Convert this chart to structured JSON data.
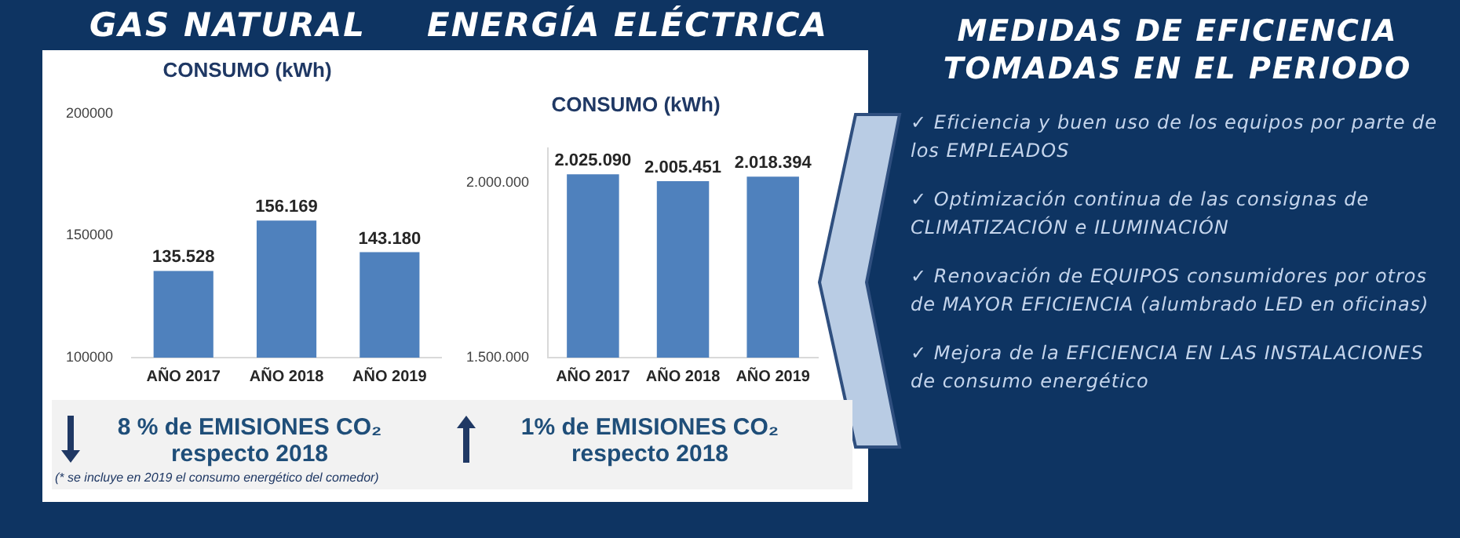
{
  "chart_data": [
    {
      "type": "bar",
      "title": "GAS NATURAL",
      "subtitle": "CONSUMO (kWh)",
      "categories": [
        "AÑO 2017",
        "AÑO 2018",
        "AÑO 2019"
      ],
      "values": [
        135528,
        156169,
        143180
      ],
      "color": "#4f81bd",
      "value_labels": [
        "135.528",
        "156.169",
        "143.180"
      ],
      "ylim": [
        100000,
        200000
      ],
      "yticks": [
        100000,
        150000,
        200000
      ],
      "grid": false,
      "legend": false,
      "annotations": [
        "8 % de EMISIONES CO₂ respecto 2018",
        "(* se incluye en 2019 el consumo energético del comedor)"
      ]
    },
    {
      "type": "bar",
      "title": "ENERGÍA ELÉCTRICA",
      "subtitle": "CONSUMO (kWh)",
      "categories": [
        "AÑO 2017",
        "AÑO 2018",
        "AÑO 2019"
      ],
      "values": [
        2025090,
        2005451,
        2018394
      ],
      "color": "#4f81bd",
      "value_labels": [
        "2.025.090",
        "2.005.451",
        "2.018.394"
      ],
      "ylim": [
        1500000,
        2100000
      ],
      "yticks": [
        {
          "value": 1500000,
          "label": "1.500.000"
        },
        {
          "value": 2000000,
          "label": "2.000.000"
        }
      ],
      "grid": false,
      "legend": false,
      "annotations": [
        "1% de EMISIONES CO₂ respecto 2018"
      ]
    },
    {
      "type": "other",
      "title": "MEDIDAS DE EFICIENCIA TOMADAS EN EL PERIODO",
      "annotations": [
        "✓ Eficiencia y buen uso de los equipos por parte de los EMPLEADOS",
        "✓ Optimización continua de las consignas de CLIMATIZACIÓN e ILUMINACIÓN",
        "✓ Renovación de EQUIPOS consumidores por otros de MAYOR EFICIENCIA (alumbrado LED en oficinas)",
        "✓ Mejora de la EFICIENCIA EN LAS INSTALACIONES de consumo energético"
      ]
    }
  ]
}
